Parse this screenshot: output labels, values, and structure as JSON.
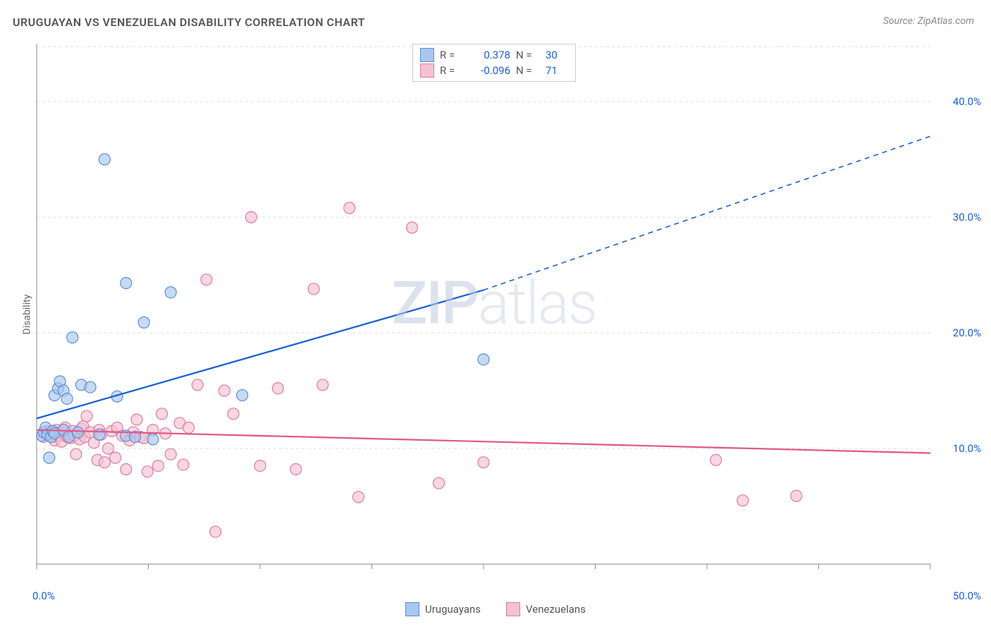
{
  "title": "URUGUAYAN VS VENEZUELAN DISABILITY CORRELATION CHART",
  "source": "Source: ZipAtlas.com",
  "ylabel": "Disability",
  "watermark": {
    "prefix": "ZIP",
    "suffix": "atlas"
  },
  "chart": {
    "type": "scatter",
    "background_color": "#ffffff",
    "grid_color": "#dddddd",
    "axis_color": "#888888",
    "tick_color": "#888888",
    "xlim": [
      0,
      50
    ],
    "ylim": [
      0,
      45
    ],
    "yticks": [
      {
        "v": 10,
        "label": "10.0%"
      },
      {
        "v": 20,
        "label": "20.0%"
      },
      {
        "v": 30,
        "label": "30.0%"
      },
      {
        "v": 40,
        "label": "40.0%"
      }
    ],
    "xtick_positions": [
      0,
      6.25,
      12.5,
      18.75,
      25,
      31.25,
      37.5,
      43.75,
      50
    ],
    "xtick_labels": {
      "left": "0.0%",
      "right": "50.0%"
    },
    "marker_radius": 8,
    "marker_stroke_width": 1.2,
    "series": [
      {
        "name": "Uruguayans",
        "fill": "#a9c6ee",
        "stroke": "#5a8fd6",
        "line_color": "#1a5fd8",
        "trend": {
          "x1": 0,
          "y1": 12.6,
          "x2": 25,
          "y2": 23.7,
          "x3": 50,
          "y3": 37.0
        },
        "R": "0.378",
        "N": "30",
        "points": [
          [
            0.3,
            11.1
          ],
          [
            0.4,
            11.4
          ],
          [
            0.5,
            11.8
          ],
          [
            0.6,
            11.2
          ],
          [
            0.7,
            9.2
          ],
          [
            0.8,
            11.0
          ],
          [
            0.9,
            11.5
          ],
          [
            1.0,
            11.3
          ],
          [
            1.0,
            14.6
          ],
          [
            1.2,
            15.2
          ],
          [
            1.3,
            15.8
          ],
          [
            1.5,
            15.0
          ],
          [
            1.5,
            11.6
          ],
          [
            1.7,
            14.3
          ],
          [
            1.8,
            11.0
          ],
          [
            2.0,
            19.6
          ],
          [
            2.3,
            11.4
          ],
          [
            2.5,
            15.5
          ],
          [
            3.0,
            15.3
          ],
          [
            3.5,
            11.2
          ],
          [
            3.8,
            35.0
          ],
          [
            4.5,
            14.5
          ],
          [
            5.0,
            11.1
          ],
          [
            5.0,
            24.3
          ],
          [
            5.5,
            11.0
          ],
          [
            6.0,
            20.9
          ],
          [
            6.5,
            10.8
          ],
          [
            7.5,
            23.5
          ],
          [
            11.5,
            14.6
          ],
          [
            25.0,
            17.7
          ]
        ]
      },
      {
        "name": "Venezuelans",
        "fill": "#f5c2d1",
        "stroke": "#e07ba0",
        "line_color": "#e05b8a",
        "trend": {
          "x1": 0,
          "y1": 11.6,
          "x2": 50,
          "y2": 9.6
        },
        "R": "-0.096",
        "N": "71",
        "points": [
          [
            0.4,
            11.0
          ],
          [
            0.5,
            11.3
          ],
          [
            0.6,
            11.5
          ],
          [
            0.7,
            11.1
          ],
          [
            0.8,
            11.2
          ],
          [
            0.9,
            11.4
          ],
          [
            1.0,
            11.0
          ],
          [
            1.0,
            10.7
          ],
          [
            1.1,
            11.6
          ],
          [
            1.2,
            11.3
          ],
          [
            1.3,
            11.1
          ],
          [
            1.4,
            10.6
          ],
          [
            1.5,
            11.4
          ],
          [
            1.6,
            11.8
          ],
          [
            1.7,
            11.0
          ],
          [
            1.8,
            11.2
          ],
          [
            1.9,
            10.9
          ],
          [
            2.0,
            11.5
          ],
          [
            2.1,
            11.1
          ],
          [
            2.2,
            9.5
          ],
          [
            2.3,
            11.3
          ],
          [
            2.4,
            10.8
          ],
          [
            2.5,
            11.7
          ],
          [
            2.6,
            11.9
          ],
          [
            2.7,
            11.0
          ],
          [
            2.8,
            12.8
          ],
          [
            3.0,
            11.4
          ],
          [
            3.2,
            10.5
          ],
          [
            3.4,
            9.0
          ],
          [
            3.5,
            11.6
          ],
          [
            3.6,
            11.2
          ],
          [
            3.8,
            8.8
          ],
          [
            4.0,
            10.0
          ],
          [
            4.2,
            11.5
          ],
          [
            4.4,
            9.2
          ],
          [
            4.5,
            11.8
          ],
          [
            4.8,
            11.1
          ],
          [
            5.0,
            8.2
          ],
          [
            5.2,
            10.7
          ],
          [
            5.4,
            11.4
          ],
          [
            5.6,
            12.5
          ],
          [
            5.8,
            11.0
          ],
          [
            6.0,
            10.9
          ],
          [
            6.2,
            8.0
          ],
          [
            6.5,
            11.6
          ],
          [
            6.8,
            8.5
          ],
          [
            7.0,
            13.0
          ],
          [
            7.2,
            11.3
          ],
          [
            7.5,
            9.5
          ],
          [
            8.0,
            12.2
          ],
          [
            8.2,
            8.6
          ],
          [
            8.5,
            11.8
          ],
          [
            9.0,
            15.5
          ],
          [
            9.5,
            24.6
          ],
          [
            10.0,
            2.8
          ],
          [
            10.5,
            15.0
          ],
          [
            11.0,
            13.0
          ],
          [
            12.0,
            30.0
          ],
          [
            12.5,
            8.5
          ],
          [
            13.5,
            15.2
          ],
          [
            14.5,
            8.2
          ],
          [
            15.5,
            23.8
          ],
          [
            16.0,
            15.5
          ],
          [
            17.5,
            30.8
          ],
          [
            18.0,
            5.8
          ],
          [
            21.0,
            29.1
          ],
          [
            22.5,
            7.0
          ],
          [
            25.0,
            8.8
          ],
          [
            38.0,
            9.0
          ],
          [
            39.5,
            5.5
          ],
          [
            42.5,
            5.9
          ]
        ]
      }
    ]
  },
  "legend_top": [
    {
      "swatch_fill": "#a9c6ee",
      "swatch_stroke": "#5a8fd6",
      "r_label": "R =",
      "r_val": "0.378",
      "n_label": "N =",
      "n_val": "30"
    },
    {
      "swatch_fill": "#f5c2d1",
      "swatch_stroke": "#e07ba0",
      "r_label": "R =",
      "r_val": "-0.096",
      "n_label": "N =",
      "n_val": "71"
    }
  ],
  "legend_bottom": [
    {
      "swatch_fill": "#a9c6ee",
      "swatch_stroke": "#5a8fd6",
      "label": "Uruguayans"
    },
    {
      "swatch_fill": "#f5c2d1",
      "swatch_stroke": "#e07ba0",
      "label": "Venezuelans"
    }
  ]
}
